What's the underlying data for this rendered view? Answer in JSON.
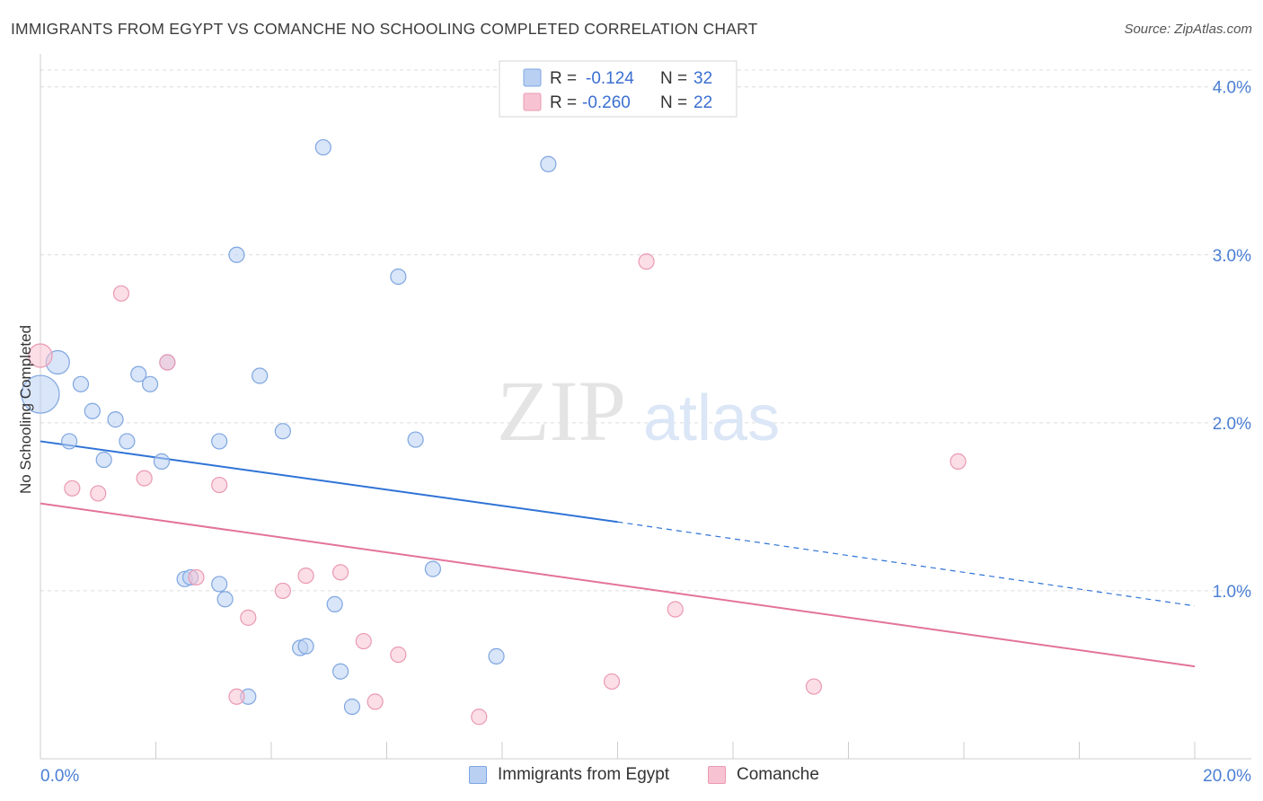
{
  "header": {
    "title": "IMMIGRANTS FROM EGYPT VS COMANCHE NO SCHOOLING COMPLETED CORRELATION CHART",
    "source": "Source: ZipAtlas.com"
  },
  "watermark": {
    "zip": "ZIP",
    "atlas": "atlas"
  },
  "colors": {
    "egypt_fill": "#b9d0f3",
    "egypt_stroke": "#7ea6e0",
    "egypt_line": "#2f73d6",
    "comanche_fill": "#f7c3d2",
    "comanche_stroke": "#ea99b3",
    "comanche_line": "#e3739a",
    "grid": "#dcdcdc",
    "tick_text": "#4a7fd4"
  },
  "stats_legend": [
    {
      "r_label": "R =",
      "r_value": "-0.124",
      "n_label": "N =",
      "n_value": "32"
    },
    {
      "r_label": "R =",
      "r_value": "-0.260",
      "n_label": "N =",
      "n_value": "22"
    }
  ],
  "chart_data": {
    "type": "scatter",
    "title": "IMMIGRANTS FROM EGYPT VS COMANCHE NO SCHOOLING COMPLETED CORRELATION CHART",
    "xlabel": "",
    "ylabel": "No Schooling Completed",
    "xlim": [
      0,
      20
    ],
    "ylim": [
      0,
      4.1
    ],
    "x_ticks": [
      {
        "value": 0,
        "label": "0.0%"
      },
      {
        "value": 20,
        "label": "20.0%"
      }
    ],
    "y_ticks": [
      {
        "value": 1,
        "label": "1.0%"
      },
      {
        "value": 2,
        "label": "2.0%"
      },
      {
        "value": 3,
        "label": "3.0%"
      },
      {
        "value": 4,
        "label": "4.0%"
      }
    ],
    "legend": [
      "Immigrants from Egypt",
      "Comanche"
    ],
    "series": [
      {
        "name": "Immigrants from Egypt",
        "r": -0.124,
        "n": 32,
        "trend": {
          "x0": 0,
          "y0": 1.89,
          "x_solid_end": 10,
          "y_solid_end": 1.41,
          "x1": 20,
          "y1": 0.91
        },
        "points": [
          {
            "x": 0.0,
            "y": 2.17,
            "size": "large"
          },
          {
            "x": 0.3,
            "y": 2.36,
            "size": "medium"
          },
          {
            "x": 0.5,
            "y": 1.89
          },
          {
            "x": 0.7,
            "y": 2.23
          },
          {
            "x": 0.9,
            "y": 2.07
          },
          {
            "x": 1.1,
            "y": 1.78
          },
          {
            "x": 1.3,
            "y": 2.02
          },
          {
            "x": 1.5,
            "y": 1.89
          },
          {
            "x": 1.7,
            "y": 2.29
          },
          {
            "x": 1.9,
            "y": 2.23
          },
          {
            "x": 2.1,
            "y": 1.77
          },
          {
            "x": 2.2,
            "y": 2.36
          },
          {
            "x": 2.5,
            "y": 1.07
          },
          {
            "x": 2.6,
            "y": 1.08
          },
          {
            "x": 3.1,
            "y": 1.89
          },
          {
            "x": 3.1,
            "y": 1.04
          },
          {
            "x": 3.2,
            "y": 0.95
          },
          {
            "x": 3.4,
            "y": 3.0
          },
          {
            "x": 3.6,
            "y": 0.37
          },
          {
            "x": 3.8,
            "y": 2.28
          },
          {
            "x": 4.2,
            "y": 1.95
          },
          {
            "x": 4.5,
            "y": 0.66
          },
          {
            "x": 4.6,
            "y": 0.67
          },
          {
            "x": 4.9,
            "y": 3.64
          },
          {
            "x": 5.1,
            "y": 0.92
          },
          {
            "x": 5.2,
            "y": 0.52
          },
          {
            "x": 5.4,
            "y": 0.31
          },
          {
            "x": 6.2,
            "y": 2.87
          },
          {
            "x": 6.5,
            "y": 1.9
          },
          {
            "x": 6.8,
            "y": 1.13
          },
          {
            "x": 7.9,
            "y": 0.61
          },
          {
            "x": 8.8,
            "y": 3.54
          }
        ]
      },
      {
        "name": "Comanche",
        "r": -0.26,
        "n": 22,
        "trend": {
          "x0": 0,
          "y0": 1.52,
          "x1": 20,
          "y1": 0.55
        },
        "points": [
          {
            "x": 0.0,
            "y": 2.4,
            "size": "medium"
          },
          {
            "x": 0.55,
            "y": 1.61
          },
          {
            "x": 1.0,
            "y": 1.58
          },
          {
            "x": 1.4,
            "y": 2.77
          },
          {
            "x": 1.8,
            "y": 1.67
          },
          {
            "x": 2.2,
            "y": 2.36
          },
          {
            "x": 2.7,
            "y": 1.08
          },
          {
            "x": 3.1,
            "y": 1.63
          },
          {
            "x": 3.4,
            "y": 0.37
          },
          {
            "x": 3.6,
            "y": 0.84
          },
          {
            "x": 4.2,
            "y": 1.0
          },
          {
            "x": 4.6,
            "y": 1.09
          },
          {
            "x": 5.2,
            "y": 1.11
          },
          {
            "x": 5.6,
            "y": 0.7
          },
          {
            "x": 5.8,
            "y": 0.34
          },
          {
            "x": 6.2,
            "y": 0.62
          },
          {
            "x": 7.6,
            "y": 0.25
          },
          {
            "x": 9.9,
            "y": 0.46
          },
          {
            "x": 10.5,
            "y": 2.96
          },
          {
            "x": 11.0,
            "y": 0.89
          },
          {
            "x": 13.4,
            "y": 0.43
          },
          {
            "x": 15.9,
            "y": 1.77
          }
        ]
      }
    ]
  }
}
